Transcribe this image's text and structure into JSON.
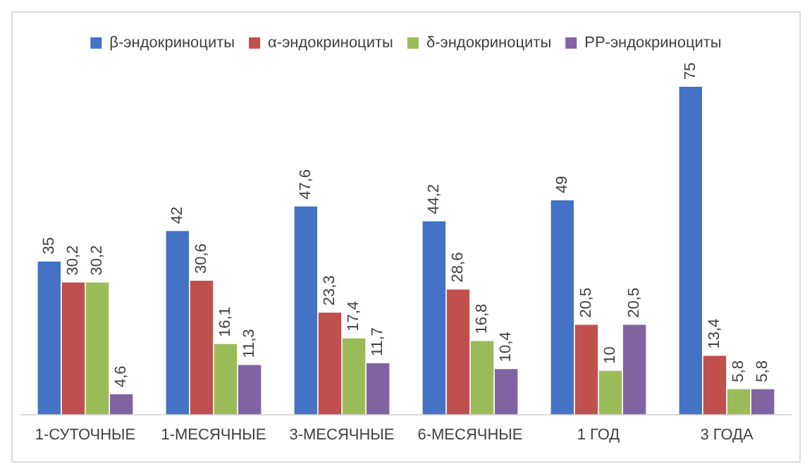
{
  "chart_data": {
    "type": "bar",
    "categories": [
      "1-СУТОЧНЫЕ",
      "1-МЕСЯЧНЫЕ",
      "3-МЕСЯЧНЫЕ",
      "6-МЕСЯЧНЫЕ",
      "1 ГОД",
      "3 ГОДА"
    ],
    "legend": "top",
    "grid": false,
    "series": [
      {
        "name": "β-эндокриноциты",
        "color": "#4472c4",
        "values": [
          35,
          42,
          47.6,
          44.2,
          49,
          75
        ],
        "value_labels": [
          "35",
          "42",
          "47,6",
          "44,2",
          "49",
          "75"
        ]
      },
      {
        "name": "α-эндокриноциты",
        "color": "#c0504d",
        "values": [
          30.2,
          30.6,
          23.3,
          28.6,
          20.5,
          13.4
        ],
        "value_labels": [
          "30,2",
          "30,6",
          "23,3",
          "28,6",
          "20,5",
          "13,4"
        ]
      },
      {
        "name": "δ-эндокриноциты",
        "color": "#9bbb59",
        "values": [
          30.2,
          16.1,
          17.4,
          16.8,
          10,
          5.8
        ],
        "value_labels": [
          "30,2",
          "16,1",
          "17,4",
          "16,8",
          "10",
          "5,8"
        ]
      },
      {
        "name": "PP-эндокриноциты",
        "color": "#8064a2",
        "values": [
          4.6,
          11.3,
          11.7,
          10.4,
          20.5,
          5.8
        ],
        "value_labels": [
          "4,6",
          "11,3",
          "11,7",
          "10,4",
          "20,5",
          "5,8"
        ]
      }
    ]
  }
}
